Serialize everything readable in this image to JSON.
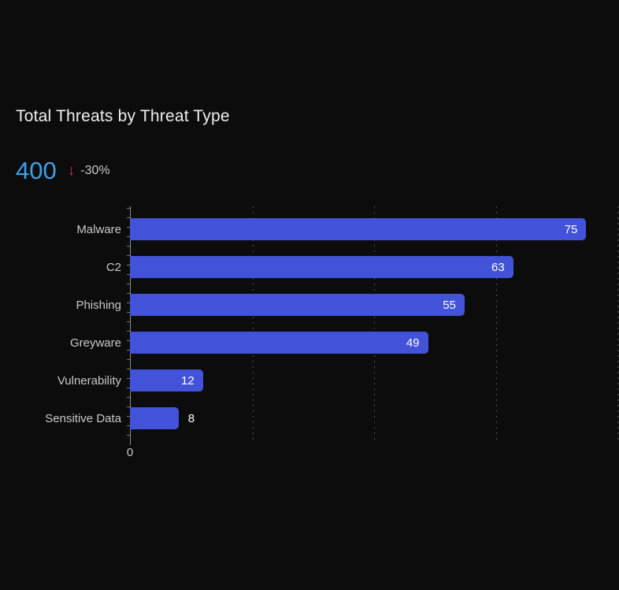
{
  "panel": {
    "background": "#0c0c0d"
  },
  "header": {
    "title": "Total Threats by Threat Type"
  },
  "kpi": {
    "value": "400",
    "trend_icon": "down-arrow",
    "trend_glyph": "↓",
    "delta": "-30%",
    "value_color": "#3fa0e8",
    "trend_color": "#cb2c6d",
    "delta_color": "#c9c9cd"
  },
  "chart_data": {
    "type": "bar",
    "orientation": "horizontal",
    "title": "Total Threats by Threat Type",
    "categories": [
      "Malware",
      "C2",
      "Phishing",
      "Greyware",
      "Vulnerability",
      "Sensitive Data"
    ],
    "values": [
      75,
      63,
      55,
      49,
      12,
      8
    ],
    "xlabel": "",
    "ylabel": "",
    "xlim": [
      0,
      80
    ],
    "x_axis_labels_visible": [
      "0"
    ],
    "gridline_values": [
      20,
      40,
      60,
      80
    ],
    "grid_style": "dashed-vertical",
    "bar_color": "#4353d9",
    "value_labels": "shown",
    "legend": "none"
  }
}
